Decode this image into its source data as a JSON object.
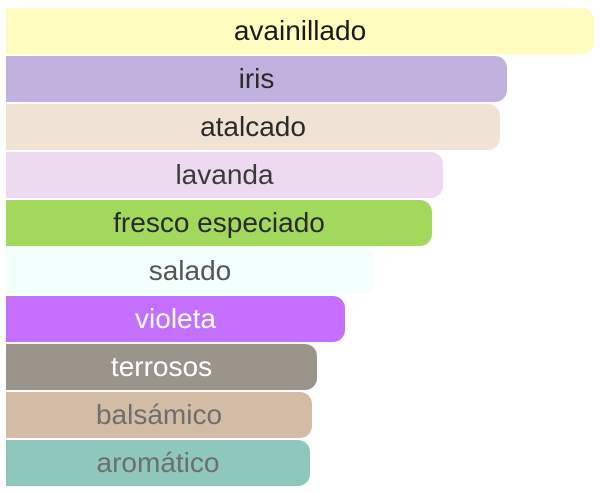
{
  "chart_data": {
    "type": "bar",
    "orientation": "horizontal",
    "categories": [
      "avainillado",
      "iris",
      "atalcado",
      "lavanda",
      "fresco especiado",
      "salado",
      "violeta",
      "terrosos",
      "balsámico",
      "aromático"
    ],
    "values": [
      100,
      85.2,
      84.0,
      74.3,
      72.4,
      62.5,
      57.7,
      52.9,
      52.1,
      51.7
    ],
    "colors": [
      "#FFFCC0",
      "#C1B1DF",
      "#F1E2D6",
      "#EDD9F0",
      "#A2D95C",
      "#F2FFFC",
      "#C46FFF",
      "#9B948B",
      "#D3BCA6",
      "#8EC8BC"
    ],
    "label_colors": [
      "#1a1a1a",
      "#2a2a2a",
      "#2a2a2a",
      "#3a3a3a",
      "#2a2a2a",
      "#555555",
      "#ffffff",
      "#ffffff",
      "#6e6e6e",
      "#6e6e6e"
    ],
    "xlim": [
      0,
      100
    ],
    "title": "",
    "xlabel": "",
    "ylabel": ""
  }
}
